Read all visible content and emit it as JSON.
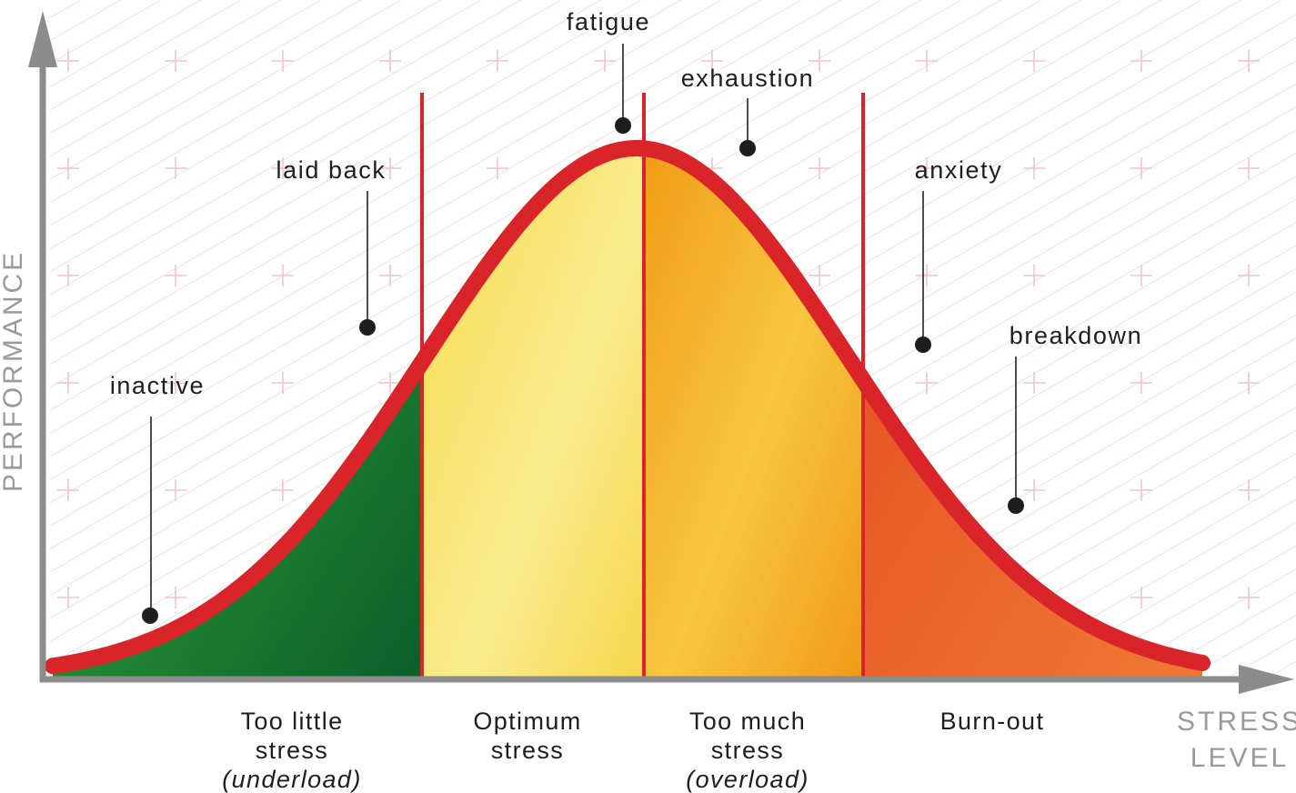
{
  "axes": {
    "y_label": "PERFORMANCE",
    "x_label_line1": "STRESS",
    "x_label_line2": "LEVEL"
  },
  "annotations": {
    "inactive": "inactive",
    "laid_back": "laid back",
    "fatigue": "fatigue",
    "exhaustion": "exhaustion",
    "anxiety": "anxiety",
    "breakdown": "breakdown"
  },
  "zones": [
    {
      "line1": "Too little",
      "line2": "stress",
      "line3": "(underload)",
      "color": "#1f8a2e"
    },
    {
      "line1": "Optimum",
      "line2": "stress",
      "line3": "",
      "color": "#f7e46a"
    },
    {
      "line1": "Too much",
      "line2": "stress",
      "line3": "(overload)",
      "color": "#f3a21c"
    },
    {
      "line1": "Burn-out",
      "line2": "",
      "line3": "",
      "color": "#e9522a"
    }
  ],
  "colors": {
    "curve": "#d9242a",
    "axis": "#8c8c8c",
    "marker": "#1e1e1e",
    "background_hatch": "#f3c9d6"
  }
}
